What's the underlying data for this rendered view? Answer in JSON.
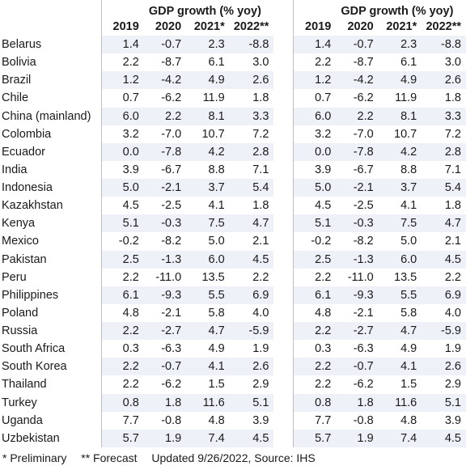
{
  "header": {
    "group_title": "GDP growth (% yoy)",
    "years": [
      "2019",
      "2020",
      "2021*",
      "2022**"
    ]
  },
  "rows": [
    {
      "country": "Belarus",
      "v": [
        "1.4",
        "-0.7",
        "2.3",
        "-8.8"
      ]
    },
    {
      "country": "Bolivia",
      "v": [
        "2.2",
        "-8.7",
        "6.1",
        "3.0"
      ]
    },
    {
      "country": "Brazil",
      "v": [
        "1.2",
        "-4.2",
        "4.9",
        "2.6"
      ]
    },
    {
      "country": "Chile",
      "v": [
        "0.7",
        "-6.2",
        "11.9",
        "1.8"
      ]
    },
    {
      "country": "China (mainland)",
      "v": [
        "6.0",
        "2.2",
        "8.1",
        "3.3"
      ]
    },
    {
      "country": "Colombia",
      "v": [
        "3.2",
        "-7.0",
        "10.7",
        "7.2"
      ]
    },
    {
      "country": "Ecuador",
      "v": [
        "0.0",
        "-7.8",
        "4.2",
        "2.8"
      ]
    },
    {
      "country": "India",
      "v": [
        "3.9",
        "-6.7",
        "8.8",
        "7.1"
      ]
    },
    {
      "country": "Indonesia",
      "v": [
        "5.0",
        "-2.1",
        "3.7",
        "5.4"
      ]
    },
    {
      "country": "Kazakhstan",
      "v": [
        "4.5",
        "-2.5",
        "4.1",
        "1.8"
      ]
    },
    {
      "country": "Kenya",
      "v": [
        "5.1",
        "-0.3",
        "7.5",
        "4.7"
      ]
    },
    {
      "country": "Mexico",
      "v": [
        "-0.2",
        "-8.2",
        "5.0",
        "2.1"
      ]
    },
    {
      "country": "Pakistan",
      "v": [
        "2.5",
        "-1.3",
        "6.0",
        "4.5"
      ]
    },
    {
      "country": "Peru",
      "v": [
        "2.2",
        "-11.0",
        "13.5",
        "2.2"
      ]
    },
    {
      "country": "Philippines",
      "v": [
        "6.1",
        "-9.3",
        "5.5",
        "6.9"
      ]
    },
    {
      "country": "Poland",
      "v": [
        "4.8",
        "-2.1",
        "5.8",
        "4.0"
      ]
    },
    {
      "country": "Russia",
      "v": [
        "2.2",
        "-2.7",
        "4.7",
        "-5.9"
      ]
    },
    {
      "country": "South Africa",
      "v": [
        "0.3",
        "-6.3",
        "4.9",
        "1.9"
      ]
    },
    {
      "country": "South Korea",
      "v": [
        "2.2",
        "-0.7",
        "4.1",
        "2.6"
      ]
    },
    {
      "country": "Thailand",
      "v": [
        "2.2",
        "-6.2",
        "1.5",
        "2.9"
      ]
    },
    {
      "country": "Turkey",
      "v": [
        "0.8",
        "1.8",
        "11.6",
        "5.1"
      ]
    },
    {
      "country": "Uganda",
      "v": [
        "7.7",
        "-0.8",
        "4.8",
        "3.9"
      ]
    },
    {
      "country": "Uzbekistan",
      "v": [
        "5.7",
        "1.9",
        "7.4",
        "4.5"
      ]
    }
  ],
  "footer": {
    "preliminary": "* Preliminary",
    "forecast": "** Forecast",
    "updated": "Updated 9/26/2022, Source: IHS"
  }
}
